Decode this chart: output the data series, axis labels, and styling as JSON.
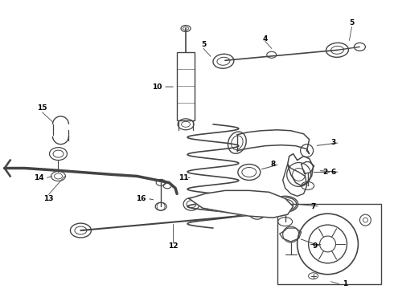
{
  "background_color": "#ffffff",
  "line_color": "#444444",
  "fig_width": 4.9,
  "fig_height": 3.6,
  "dpi": 100
}
